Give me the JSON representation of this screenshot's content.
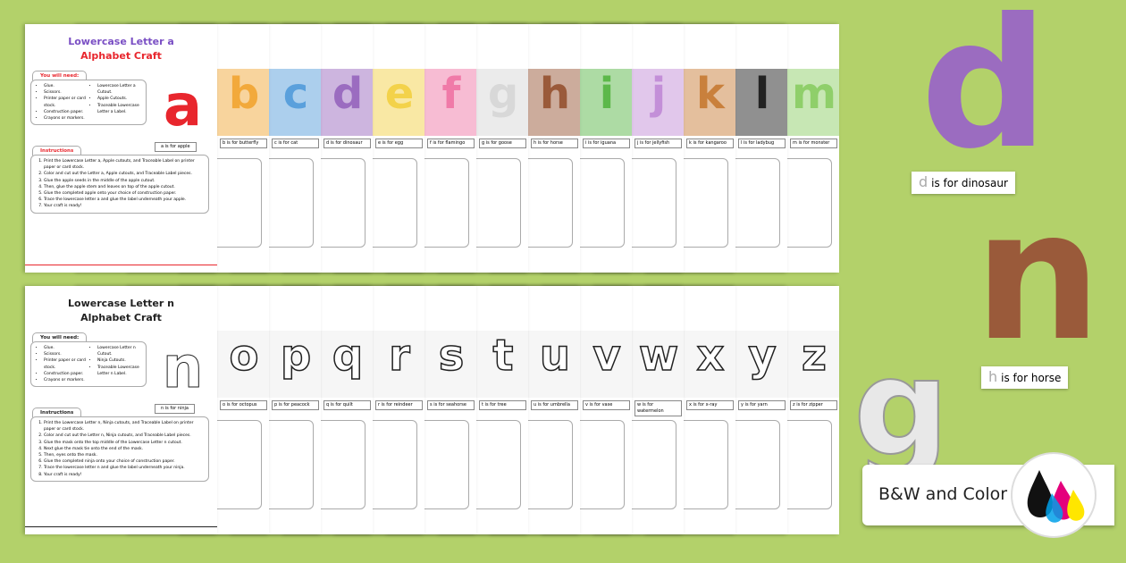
{
  "top_front": {
    "title1": "Lowercase Letter a",
    "title2": "Alphabet Craft",
    "need_tab": "You will need:",
    "need_left": [
      "Glue.",
      "Scissors.",
      "Printer paper or card stock.",
      "Construction paper.",
      "Crayons or markers."
    ],
    "need_right": [
      "Lowercase Letter a Cutout.",
      "Apple Cutouts.",
      "Traceable Lowercase Letter a Label."
    ],
    "instr_tab": "Instructions",
    "steps": [
      "Print the Lowercase Letter a, Apple cutouts, and Traceable Label on printer paper or card stock.",
      "Color and cut out the Letter a, Apple cutouts, and Traceable Label pieces.",
      "Glue the apple seeds in the middle of the apple cutout.",
      "Then, glue the apple stem and leaves on top of the apple cutout.",
      "Glue the completed apple onto your choice of construction paper.",
      "Trace the lowercase letter a and glue the label underneath your apple.",
      "Your craft is ready!"
    ],
    "letter": "a",
    "label": "a is for apple"
  },
  "bot_front": {
    "title1": "Lowercase Letter n",
    "title2": "Alphabet Craft",
    "need_tab": "You will need:",
    "need_left": [
      "Glue.",
      "Scissors.",
      "Printer paper or card stock.",
      "Construction paper.",
      "Crayons or markers."
    ],
    "need_right": [
      "Lowercase Letter n Cutout.",
      "Ninja Cutouts.",
      "Traceable Lowercase Letter n Label."
    ],
    "instr_tab": "Instructions",
    "steps": [
      "Print the Lowercase Letter n, Ninja cutouts, and Traceable Label on printer paper or card stock.",
      "Color and cut out the Letter n, Ninja cutouts, and Traceable Label pieces.",
      "Glue the mask onto the top middle of the Lowercase Letter n cutout.",
      "Next glue the mask tie onto the end of the mask.",
      "Then, eyes onto the mask.",
      "Glue the completed ninja onto your choice of construction paper.",
      "Trace the lowercase letter n and glue the label underneath your ninja.",
      "Your craft is ready!"
    ],
    "letter": "n",
    "label": "n is for ninja"
  },
  "top_sheets": [
    {
      "letter": "b",
      "label": "b is for butterfly",
      "color": "#f2a93b"
    },
    {
      "letter": "c",
      "label": "c is for cat",
      "color": "#5aa0dc"
    },
    {
      "letter": "d",
      "label": "d is for dinosaur",
      "color": "#9b6cc0"
    },
    {
      "letter": "e",
      "label": "e is for egg",
      "color": "#f3d24a"
    },
    {
      "letter": "f",
      "label": "f is for flamingo",
      "color": "#f07aa8"
    },
    {
      "letter": "g",
      "label": "g is for goose",
      "color": "#d8d8d8"
    },
    {
      "letter": "h",
      "label": "h is for horse",
      "color": "#9a5a3a"
    },
    {
      "letter": "i",
      "label": "i is for iguana",
      "color": "#5cb84a"
    },
    {
      "letter": "j",
      "label": "j is for jellyfish",
      "color": "#c38fd8"
    },
    {
      "letter": "k",
      "label": "k is for kangaroo",
      "color": "#c9803c"
    },
    {
      "letter": "l",
      "label": "l is for ladybug",
      "color": "#222222"
    },
    {
      "letter": "m",
      "label": "m is for monster",
      "color": "#8fcf6a"
    }
  ],
  "bot_sheets": [
    {
      "letter": "o",
      "label": "o is for octopus"
    },
    {
      "letter": "p",
      "label": "p is for peacock"
    },
    {
      "letter": "q",
      "label": "q is for quilt"
    },
    {
      "letter": "r",
      "label": "r is for reindeer"
    },
    {
      "letter": "s",
      "label": "s is for seahorse"
    },
    {
      "letter": "t",
      "label": "t is for tree"
    },
    {
      "letter": "u",
      "label": "u is for umbrella"
    },
    {
      "letter": "v",
      "label": "v is for vase"
    },
    {
      "letter": "w",
      "label": "w is for watermelon"
    },
    {
      "letter": "x",
      "label": "x is for x-ray"
    },
    {
      "letter": "y",
      "label": "y is for yarn"
    },
    {
      "letter": "z",
      "label": "z is for zipper"
    }
  ],
  "side": {
    "d_letter": "d",
    "d_text": "is for dinosaur",
    "h_letter": "h",
    "h_text": "is for horse",
    "badge": "B&W and Color"
  },
  "colors": {
    "background": "#b3d16a",
    "apple": "#e8262d",
    "dinosaur": "#9b6cc0",
    "horse": "#9a5a3a"
  }
}
